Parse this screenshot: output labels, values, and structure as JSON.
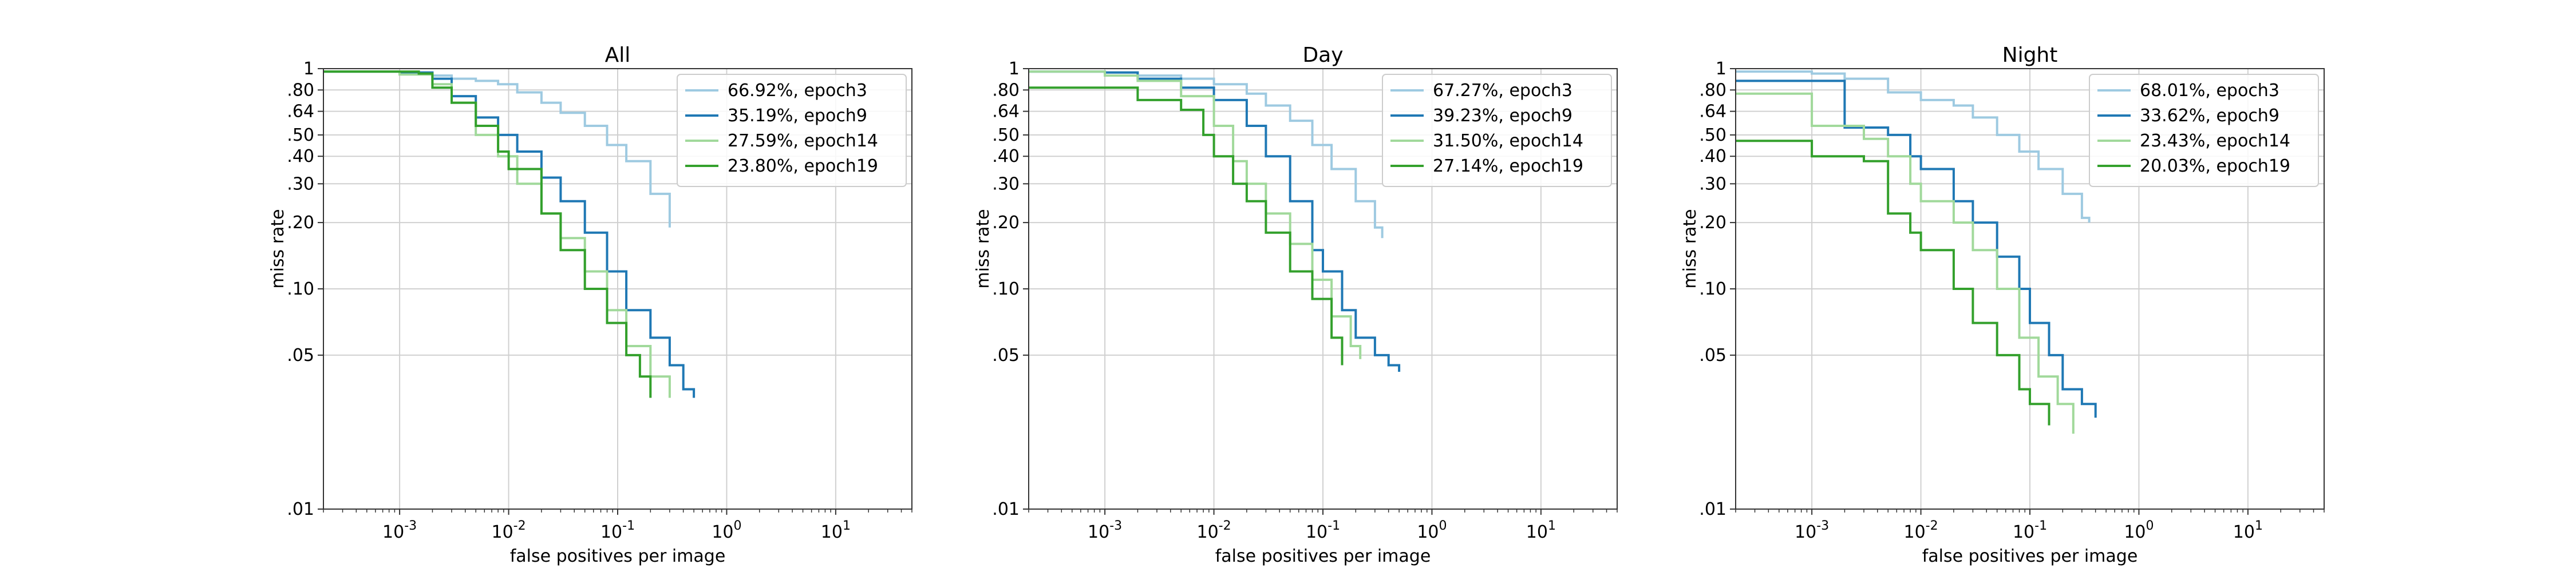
{
  "chart_data": [
    {
      "type": "line",
      "title": "All",
      "xlabel": "false positives per image",
      "ylabel": "miss rate",
      "xscale": "log",
      "yscale": "log",
      "xlim": [
        0.0002,
        50
      ],
      "ylim": [
        0.01,
        1
      ],
      "x_ticks": [
        "10^-3",
        "10^-2",
        "10^-1",
        "10^0",
        "10^1"
      ],
      "y_ticks": [
        "1",
        ".80",
        ".64",
        ".50",
        ".40",
        ".30",
        ".20",
        ".10",
        ".05",
        ".01"
      ],
      "grid": true,
      "legend_position": "top-right",
      "series": [
        {
          "name": "66.92%, epoch3",
          "color": "#9ecae1",
          "x": [
            0.0002,
            0.0005,
            0.001,
            0.002,
            0.003,
            0.005,
            0.008,
            0.012,
            0.02,
            0.03,
            0.05,
            0.08,
            0.12,
            0.2,
            0.3
          ],
          "y": [
            0.97,
            0.97,
            0.95,
            0.93,
            0.9,
            0.88,
            0.85,
            0.78,
            0.7,
            0.63,
            0.55,
            0.45,
            0.38,
            0.27,
            0.19
          ]
        },
        {
          "name": "35.19%, epoch9",
          "color": "#1f78b4",
          "x": [
            0.0002,
            0.001,
            0.002,
            0.003,
            0.005,
            0.008,
            0.012,
            0.02,
            0.03,
            0.05,
            0.08,
            0.12,
            0.2,
            0.3,
            0.4,
            0.5
          ],
          "y": [
            0.97,
            0.96,
            0.9,
            0.75,
            0.6,
            0.5,
            0.42,
            0.32,
            0.25,
            0.18,
            0.12,
            0.08,
            0.06,
            0.045,
            0.035,
            0.032
          ]
        },
        {
          "name": "27.59%, epoch14",
          "color": "#a1d99b",
          "x": [
            0.0002,
            0.001,
            0.002,
            0.003,
            0.005,
            0.008,
            0.012,
            0.02,
            0.03,
            0.05,
            0.08,
            0.12,
            0.2,
            0.3
          ],
          "y": [
            0.97,
            0.94,
            0.85,
            0.7,
            0.5,
            0.4,
            0.3,
            0.22,
            0.17,
            0.12,
            0.08,
            0.055,
            0.04,
            0.032
          ]
        },
        {
          "name": "23.80%, epoch19",
          "color": "#33a02c",
          "x": [
            0.0002,
            0.0015,
            0.002,
            0.003,
            0.005,
            0.008,
            0.01,
            0.02,
            0.03,
            0.05,
            0.08,
            0.12,
            0.16,
            0.2
          ],
          "y": [
            0.97,
            0.95,
            0.82,
            0.7,
            0.55,
            0.42,
            0.35,
            0.22,
            0.15,
            0.1,
            0.07,
            0.05,
            0.04,
            0.032
          ]
        }
      ]
    },
    {
      "type": "line",
      "title": "Day",
      "xlabel": "false positives per image",
      "ylabel": "miss rate",
      "xscale": "log",
      "yscale": "log",
      "xlim": [
        0.0002,
        50
      ],
      "ylim": [
        0.01,
        1
      ],
      "x_ticks": [
        "10^-3",
        "10^-2",
        "10^-1",
        "10^0",
        "10^1"
      ],
      "y_ticks": [
        "1",
        ".80",
        ".64",
        ".50",
        ".40",
        ".30",
        ".20",
        ".10",
        ".05",
        ".01"
      ],
      "grid": true,
      "legend_position": "top-right",
      "series": [
        {
          "name": "67.27%, epoch3",
          "color": "#9ecae1",
          "x": [
            0.0002,
            0.0005,
            0.001,
            0.002,
            0.005,
            0.01,
            0.02,
            0.03,
            0.05,
            0.08,
            0.12,
            0.2,
            0.3,
            0.35
          ],
          "y": [
            0.97,
            0.97,
            0.96,
            0.93,
            0.9,
            0.85,
            0.77,
            0.68,
            0.58,
            0.45,
            0.35,
            0.25,
            0.19,
            0.17
          ]
        },
        {
          "name": "39.23%, epoch9",
          "color": "#1f78b4",
          "x": [
            0.0002,
            0.001,
            0.002,
            0.005,
            0.01,
            0.02,
            0.03,
            0.05,
            0.08,
            0.1,
            0.15,
            0.2,
            0.3,
            0.4,
            0.5
          ],
          "y": [
            0.97,
            0.96,
            0.9,
            0.82,
            0.72,
            0.55,
            0.4,
            0.25,
            0.15,
            0.12,
            0.08,
            0.06,
            0.05,
            0.045,
            0.042
          ]
        },
        {
          "name": "31.50%, epoch14",
          "color": "#a1d99b",
          "x": [
            0.0002,
            0.001,
            0.002,
            0.005,
            0.01,
            0.015,
            0.02,
            0.03,
            0.05,
            0.08,
            0.12,
            0.18,
            0.22
          ],
          "y": [
            0.97,
            0.93,
            0.88,
            0.75,
            0.55,
            0.38,
            0.3,
            0.22,
            0.16,
            0.11,
            0.075,
            0.055,
            0.048
          ]
        },
        {
          "name": "27.14%, epoch19",
          "color": "#33a02c",
          "x": [
            0.0002,
            0.001,
            0.002,
            0.005,
            0.008,
            0.01,
            0.015,
            0.02,
            0.03,
            0.05,
            0.08,
            0.12,
            0.15
          ],
          "y": [
            0.82,
            0.82,
            0.72,
            0.65,
            0.5,
            0.4,
            0.3,
            0.25,
            0.18,
            0.12,
            0.09,
            0.06,
            0.045
          ]
        }
      ]
    },
    {
      "type": "line",
      "title": "Night",
      "xlabel": "false positives per image",
      "ylabel": "miss rate",
      "xscale": "log",
      "yscale": "log",
      "xlim": [
        0.0002,
        50
      ],
      "ylim": [
        0.01,
        1
      ],
      "x_ticks": [
        "10^-3",
        "10^-2",
        "10^-1",
        "10^0",
        "10^1"
      ],
      "y_ticks": [
        "1",
        ".80",
        ".64",
        ".50",
        ".40",
        ".30",
        ".20",
        ".10",
        ".05",
        ".01"
      ],
      "grid": true,
      "legend_position": "top-right",
      "series": [
        {
          "name": "68.01%, epoch3",
          "color": "#9ecae1",
          "x": [
            0.0002,
            0.001,
            0.002,
            0.005,
            0.01,
            0.02,
            0.03,
            0.05,
            0.08,
            0.12,
            0.2,
            0.3,
            0.35
          ],
          "y": [
            0.97,
            0.95,
            0.9,
            0.78,
            0.72,
            0.68,
            0.6,
            0.5,
            0.42,
            0.35,
            0.27,
            0.21,
            0.2
          ]
        },
        {
          "name": "33.62%, epoch9",
          "color": "#1f78b4",
          "x": [
            0.0002,
            0.002,
            0.002,
            0.005,
            0.008,
            0.01,
            0.02,
            0.03,
            0.05,
            0.08,
            0.1,
            0.15,
            0.2,
            0.3,
            0.4
          ],
          "y": [
            0.88,
            0.88,
            0.54,
            0.5,
            0.4,
            0.35,
            0.25,
            0.2,
            0.14,
            0.1,
            0.07,
            0.05,
            0.035,
            0.03,
            0.026
          ]
        },
        {
          "name": "23.43%, epoch14",
          "color": "#a1d99b",
          "x": [
            0.0002,
            0.001,
            0.001,
            0.003,
            0.005,
            0.008,
            0.01,
            0.02,
            0.03,
            0.05,
            0.08,
            0.12,
            0.18,
            0.25
          ],
          "y": [
            0.77,
            0.77,
            0.55,
            0.48,
            0.4,
            0.3,
            0.25,
            0.2,
            0.15,
            0.1,
            0.06,
            0.04,
            0.03,
            0.022
          ]
        },
        {
          "name": "20.03%, epoch19",
          "color": "#33a02c",
          "x": [
            0.0002,
            0.001,
            0.001,
            0.003,
            0.005,
            0.005,
            0.008,
            0.01,
            0.02,
            0.03,
            0.05,
            0.08,
            0.1,
            0.15
          ],
          "y": [
            0.47,
            0.47,
            0.4,
            0.38,
            0.35,
            0.22,
            0.18,
            0.15,
            0.1,
            0.07,
            0.05,
            0.035,
            0.03,
            0.024
          ]
        }
      ]
    }
  ]
}
